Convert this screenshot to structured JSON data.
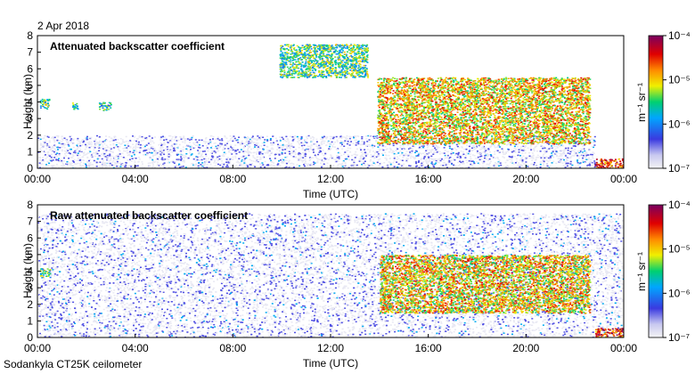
{
  "date": "2 Apr 2018",
  "footer": "Sodankyla CT25K ceilometer",
  "colors": {
    "background_noise": "#d4d4d4",
    "scale": [
      "#f2f2f2",
      "#d4d4d4",
      "#2a36d8",
      "#00a6ff",
      "#00d070",
      "#f0f000",
      "#ff8a00",
      "#e00000",
      "#800000"
    ]
  },
  "chart_data": [
    {
      "type": "heatmap",
      "title": "Attenuated backscatter coefficient",
      "xlabel": "Time (UTC)",
      "ylabel": "Height (km)",
      "xlim": [
        0,
        24
      ],
      "ylim": [
        0,
        8
      ],
      "x_ticks": [
        "00:00",
        "04:00",
        "08:00",
        "12:00",
        "16:00",
        "20:00",
        "00:00"
      ],
      "y_ticks": [
        "0",
        "1",
        "2",
        "3",
        "4",
        "5",
        "6",
        "7",
        "8"
      ],
      "colorbar": {
        "label": "m⁻¹ sr⁻¹",
        "scale": "log",
        "range": [
          1e-07,
          0.0001
        ],
        "ticks": [
          "10⁻⁷",
          "10⁻⁶",
          "10⁻⁵",
          "10⁻⁴"
        ]
      },
      "features": [
        {
          "name": "low-level background",
          "time": [
            0,
            22.8
          ],
          "height": [
            0,
            2.0
          ],
          "level": 1e-07
        },
        {
          "name": "early cloud",
          "time": [
            0.1,
            0.5
          ],
          "height": [
            3.6,
            4.2
          ],
          "level": 3e-06
        },
        {
          "name": "early cloud 2",
          "time": [
            1.4,
            1.7
          ],
          "height": [
            3.6,
            4.0
          ],
          "level": 2e-06
        },
        {
          "name": "early cloud 3",
          "time": [
            2.5,
            3.0
          ],
          "height": [
            3.5,
            4.0
          ],
          "level": 2e-06
        },
        {
          "name": "high cloud",
          "time": [
            9.9,
            13.5
          ],
          "height": [
            5.5,
            7.5
          ],
          "level": 3e-06
        },
        {
          "name": "descending cloud layer",
          "time": [
            13.9,
            22.6
          ],
          "height": [
            1.5,
            5.5
          ],
          "level": 1e-05
        },
        {
          "name": "low cloud/fog",
          "time": [
            22.8,
            24
          ],
          "height": [
            0,
            0.6
          ],
          "level": 3e-05
        }
      ]
    },
    {
      "type": "heatmap",
      "title": "Raw attenuated backscatter coefficient",
      "xlabel": "Time (UTC)",
      "ylabel": "Height (km)",
      "xlim": [
        0,
        24
      ],
      "ylim": [
        0,
        8
      ],
      "x_ticks": [
        "00:00",
        "04:00",
        "08:00",
        "12:00",
        "16:00",
        "20:00",
        "00:00"
      ],
      "y_ticks": [
        "0",
        "1",
        "2",
        "3",
        "4",
        "5",
        "6",
        "7",
        "8"
      ],
      "colorbar": {
        "label": "m⁻¹ sr⁻¹",
        "scale": "log",
        "range": [
          1e-07,
          0.0001
        ],
        "ticks": [
          "10⁻⁷",
          "10⁻⁶",
          "10⁻⁵",
          "10⁻⁴"
        ]
      },
      "features": [
        {
          "name": "background noise",
          "time": [
            0,
            24
          ],
          "height": [
            0,
            7.5
          ],
          "level": 1e-07
        },
        {
          "name": "early cloud",
          "time": [
            0.1,
            0.5
          ],
          "height": [
            3.6,
            4.2
          ],
          "level": 3e-06
        },
        {
          "name": "descending cloud layer",
          "time": [
            14.0,
            22.6
          ],
          "height": [
            1.5,
            5.0
          ],
          "level": 1e-05
        },
        {
          "name": "low cloud/fog",
          "time": [
            22.8,
            24
          ],
          "height": [
            0,
            0.6
          ],
          "level": 3e-05
        }
      ]
    }
  ]
}
